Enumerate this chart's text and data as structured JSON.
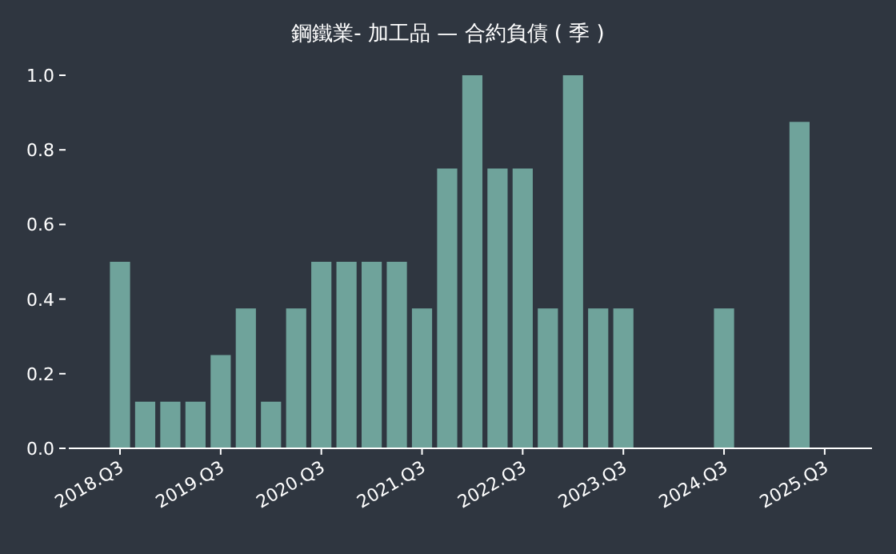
{
  "chart_data": {
    "type": "bar",
    "title": "鋼鐵業- 加工品 — 合約負債 ( 季 )",
    "categories": [
      "2018.Q3",
      null,
      null,
      null,
      "2019.Q3",
      null,
      null,
      null,
      "2020.Q3",
      null,
      null,
      null,
      "2021.Q3",
      null,
      null,
      null,
      "2022.Q3",
      null,
      null,
      null,
      "2023.Q3",
      null,
      null,
      null,
      "2024.Q3",
      null,
      null,
      null,
      "2025.Q3"
    ],
    "values": [
      0.5,
      0.125,
      0.125,
      0.125,
      0.25,
      0.375,
      0.125,
      0.375,
      0.5,
      0.5,
      0.5,
      0.5,
      0.375,
      0.75,
      1.0,
      0.75,
      0.75,
      0.375,
      1.0,
      0.375,
      0.375,
      null,
      null,
      null,
      0.375,
      null,
      null,
      0.875,
      null
    ],
    "color": "#6fa39b",
    "ylim": [
      0,
      1.0
    ],
    "yticks": [
      {
        "value": 0,
        "label": "0.0"
      },
      {
        "value": 0.2,
        "label": "0.2"
      },
      {
        "value": 0.4,
        "label": "0.4"
      },
      {
        "value": 0.6,
        "label": "0.6"
      },
      {
        "value": 0.8,
        "label": "0.8"
      },
      {
        "value": 1.0,
        "label": "1.0"
      }
    ],
    "grid": false
  }
}
